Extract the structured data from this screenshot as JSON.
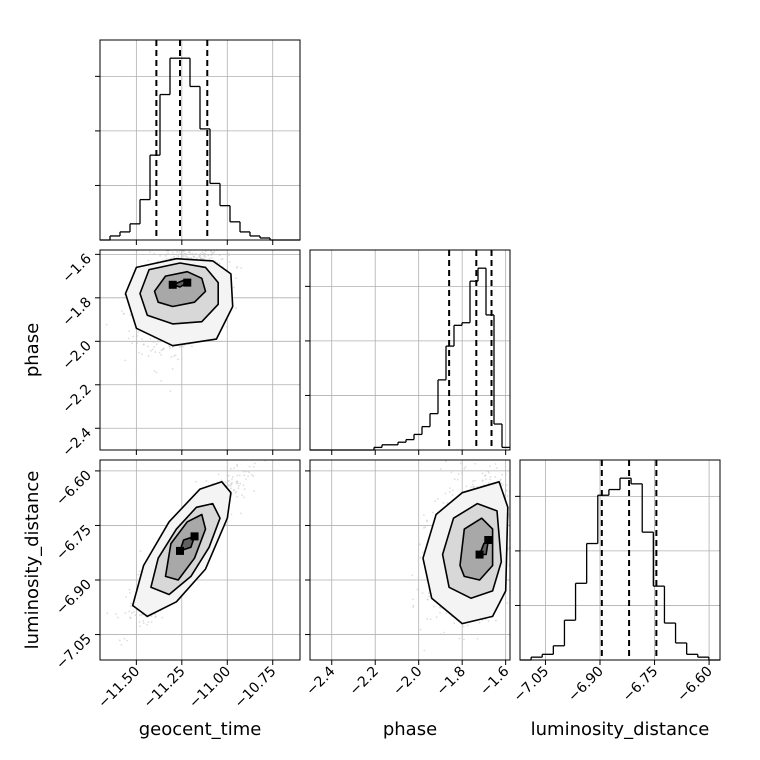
{
  "chart_data": {
    "type": "corner",
    "parameters": [
      "geocent_time",
      "phase",
      "luminosity_distance"
    ],
    "axis_labels": {
      "x": [
        "geocent_time",
        "phase",
        "luminosity_distance"
      ],
      "y": [
        "",
        "phase",
        "luminosity_distance"
      ]
    },
    "ranges": {
      "geocent_time": [
        -11.7,
        -10.6
      ],
      "phase": [
        -2.5,
        -1.58
      ],
      "luminosity_distance": [
        -7.12,
        -6.57
      ]
    },
    "ticks": {
      "geocent_time": [
        {
          "value": -11.5,
          "label": "−11.50"
        },
        {
          "value": -11.25,
          "label": "−11.25"
        },
        {
          "value": -11.0,
          "label": "−11.00"
        },
        {
          "value": -10.75,
          "label": "−10.75"
        }
      ],
      "phase": [
        {
          "value": -2.4,
          "label": "−2.4"
        },
        {
          "value": -2.2,
          "label": "−2.2"
        },
        {
          "value": -2.0,
          "label": "−2.0"
        },
        {
          "value": -1.8,
          "label": "−1.8"
        },
        {
          "value": -1.6,
          "label": "−1.6"
        }
      ],
      "luminosity_distance": [
        {
          "value": -7.05,
          "label": "−7.05"
        },
        {
          "value": -6.9,
          "label": "−6.90"
        },
        {
          "value": -6.75,
          "label": "−6.75"
        },
        {
          "value": -6.6,
          "label": "−6.60"
        }
      ]
    },
    "histograms": {
      "geocent_time": {
        "bin_range": [
          -11.7,
          -10.6
        ],
        "counts": [
          0,
          2,
          4,
          8,
          20,
          42,
          72,
          90,
          90,
          76,
          55,
          28,
          17,
          9,
          4,
          2,
          1,
          0,
          0,
          0
        ],
        "quantiles": [
          -11.39,
          -11.26,
          -11.11
        ]
      },
      "phase": {
        "bin_range": [
          -2.5,
          -1.58
        ],
        "counts": [
          0,
          0,
          0,
          0,
          0,
          0,
          0,
          0,
          1,
          2,
          2,
          3,
          4,
          6,
          9,
          14,
          27,
          40,
          48,
          49,
          65,
          70,
          52,
          10,
          1
        ],
        "quantiles": [
          -1.86,
          -1.735,
          -1.665
        ]
      },
      "luminosity_distance": {
        "bin_range": [
          -7.12,
          -6.57
        ],
        "counts": [
          0,
          1,
          2,
          5,
          14,
          27,
          41,
          58,
          60,
          64,
          62,
          45,
          26,
          13,
          6,
          2,
          1,
          0
        ],
        "quantiles": [
          -6.895,
          -6.82,
          -6.745
        ]
      }
    },
    "joint": [
      {
        "x": "geocent_time",
        "y": "phase",
        "mean": [
          -11.25,
          -1.76
        ],
        "sd": [
          0.11,
          0.12
        ],
        "corr": 0.4,
        "contours": [
          [
            [
              -11.3,
              -1.74
            ],
            [
              -11.24,
              -1.72
            ],
            [
              -11.22,
              -1.73
            ],
            [
              -11.26,
              -1.75
            ]
          ],
          [
            [
              -11.4,
              -1.77
            ],
            [
              -11.34,
              -1.7
            ],
            [
              -11.22,
              -1.68
            ],
            [
              -11.14,
              -1.71
            ],
            [
              -11.12,
              -1.77
            ],
            [
              -11.18,
              -1.82
            ],
            [
              -11.3,
              -1.84
            ],
            [
              -11.38,
              -1.82
            ]
          ],
          [
            [
              -11.48,
              -1.78
            ],
            [
              -11.43,
              -1.67
            ],
            [
              -11.26,
              -1.64
            ],
            [
              -11.12,
              -1.66
            ],
            [
              -11.05,
              -1.73
            ],
            [
              -11.05,
              -1.83
            ],
            [
              -11.14,
              -1.91
            ],
            [
              -11.3,
              -1.92
            ],
            [
              -11.44,
              -1.88
            ]
          ],
          [
            [
              -11.56,
              -1.78
            ],
            [
              -11.5,
              -1.66
            ],
            [
              -11.28,
              -1.62
            ],
            [
              -11.08,
              -1.63
            ],
            [
              -10.98,
              -1.69
            ],
            [
              -10.97,
              -1.84
            ],
            [
              -11.06,
              -1.99
            ],
            [
              -11.3,
              -2.02
            ],
            [
              -11.5,
              -1.94
            ]
          ]
        ]
      },
      {
        "x": "geocent_time",
        "y": "luminosity_distance",
        "mean": [
          -11.22,
          -6.8
        ],
        "sd": [
          0.13,
          0.09
        ],
        "corr": 0.9,
        "contours": [
          [
            [
              -11.26,
              -6.82
            ],
            [
              -11.24,
              -6.79
            ],
            [
              -11.18,
              -6.78
            ],
            [
              -11.2,
              -6.81
            ]
          ],
          [
            [
              -11.34,
              -6.89
            ],
            [
              -11.31,
              -6.8
            ],
            [
              -11.22,
              -6.74
            ],
            [
              -11.14,
              -6.72
            ],
            [
              -11.12,
              -6.76
            ],
            [
              -11.18,
              -6.84
            ],
            [
              -11.27,
              -6.9
            ]
          ],
          [
            [
              -11.42,
              -6.92
            ],
            [
              -11.38,
              -6.84
            ],
            [
              -11.28,
              -6.76
            ],
            [
              -11.17,
              -6.7
            ],
            [
              -11.08,
              -6.69
            ],
            [
              -11.04,
              -6.73
            ],
            [
              -11.1,
              -6.81
            ],
            [
              -11.2,
              -6.89
            ],
            [
              -11.32,
              -6.94
            ]
          ],
          [
            [
              -11.52,
              -6.97
            ],
            [
              -11.46,
              -6.86
            ],
            [
              -11.32,
              -6.74
            ],
            [
              -11.15,
              -6.65
            ],
            [
              -11.03,
              -6.63
            ],
            [
              -10.98,
              -6.66
            ],
            [
              -11.0,
              -6.73
            ],
            [
              -11.12,
              -6.87
            ],
            [
              -11.28,
              -6.96
            ],
            [
              -11.44,
              -7.0
            ]
          ]
        ]
      },
      {
        "x": "phase",
        "y": "luminosity_distance",
        "mean": [
          -1.75,
          -6.81
        ],
        "sd": [
          0.1,
          0.09
        ],
        "corr": 0.25,
        "contours": [
          [
            [
              -1.72,
              -6.83
            ],
            [
              -1.7,
              -6.8
            ],
            [
              -1.68,
              -6.79
            ],
            [
              -1.69,
              -6.83
            ]
          ],
          [
            [
              -1.81,
              -6.86
            ],
            [
              -1.79,
              -6.76
            ],
            [
              -1.71,
              -6.73
            ],
            [
              -1.66,
              -6.76
            ],
            [
              -1.66,
              -6.86
            ],
            [
              -1.72,
              -6.9
            ],
            [
              -1.79,
              -6.89
            ]
          ],
          [
            [
              -1.89,
              -6.83
            ],
            [
              -1.84,
              -6.73
            ],
            [
              -1.73,
              -6.69
            ],
            [
              -1.64,
              -6.71
            ],
            [
              -1.62,
              -6.85
            ],
            [
              -1.66,
              -6.93
            ],
            [
              -1.76,
              -6.95
            ],
            [
              -1.86,
              -6.92
            ]
          ],
          [
            [
              -1.98,
              -6.84
            ],
            [
              -1.92,
              -6.72
            ],
            [
              -1.8,
              -6.66
            ],
            [
              -1.63,
              -6.63
            ],
            [
              -1.59,
              -6.7
            ],
            [
              -1.6,
              -6.93
            ],
            [
              -1.66,
              -7.0
            ],
            [
              -1.8,
              -7.02
            ],
            [
              -1.94,
              -6.95
            ]
          ]
        ]
      }
    ],
    "grid": true,
    "colors": {
      "line": "#000000",
      "grid": "#b0b0b0",
      "scatter": "#c8c8c8"
    }
  }
}
